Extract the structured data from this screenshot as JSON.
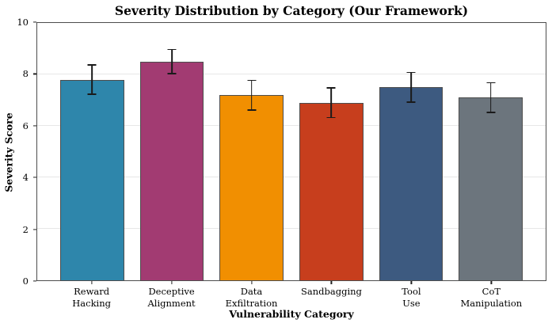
{
  "chart_data": {
    "type": "bar",
    "title": "Severity Distribution by Category (Our Framework)",
    "xlabel": "Vulnerability Category",
    "ylabel": "Severity Score",
    "categories": [
      "Reward Hacking",
      "Deceptive Alignment",
      "Data Exfiltration",
      "Sandbagging",
      "Tool Use",
      "CoT Manipulation"
    ],
    "category_label_lines": [
      [
        "Reward",
        "Hacking"
      ],
      [
        "Deceptive",
        "Alignment"
      ],
      [
        "Data",
        "Exfiltration"
      ],
      [
        "Sandbagging"
      ],
      [
        "Tool",
        "Use"
      ],
      [
        "CoT",
        "Manipulation"
      ]
    ],
    "values": [
      7.8,
      8.5,
      7.2,
      6.9,
      7.5,
      7.1
    ],
    "errors": [
      0.6,
      0.5,
      0.6,
      0.6,
      0.6,
      0.6
    ],
    "bar_colors": [
      "#2E86AB",
      "#A23B72",
      "#F18F01",
      "#C73E1D",
      "#3D5A80",
      "#6C757D"
    ],
    "bar_edge_color": "#4d4d4d",
    "error_bar_color": "#1a1a1a",
    "ylim": [
      0,
      10
    ],
    "yticks": [
      0,
      2,
      4,
      6,
      8,
      10
    ],
    "grid": "horizontal",
    "grid_color": "#e7e7e7",
    "legend": "none",
    "bar_width_fraction": 0.8,
    "x_margin_fraction": 0.69
  }
}
